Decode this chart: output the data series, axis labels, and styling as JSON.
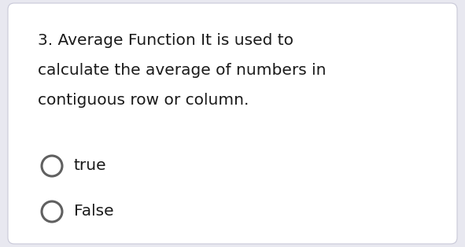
{
  "background_color": "#e8e8f0",
  "card_color": "#ffffff",
  "question_line1": "3. Average Function It is used to",
  "question_line2": "calculate the average of numbers in",
  "question_line3": "contiguous row or column.",
  "options": [
    "true",
    "False"
  ],
  "text_color": "#1a1a1a",
  "circle_edge_color": "#606060",
  "circle_linewidth": 2.2,
  "question_fontsize": 14.5,
  "option_fontsize": 14.5,
  "fig_width": 5.91,
  "fig_height": 3.14,
  "dpi": 100
}
